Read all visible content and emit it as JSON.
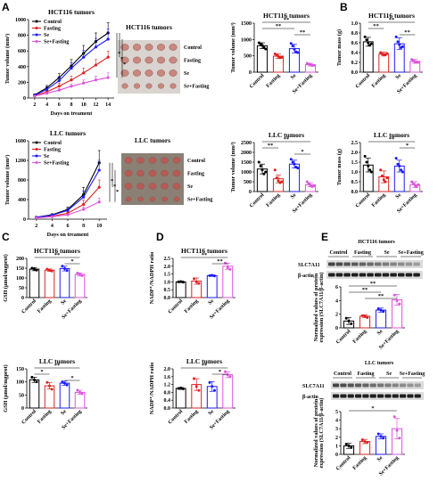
{
  "colors": {
    "Control": "#000000",
    "Fasting": "#e02020",
    "Se": "#1a1aff",
    "Se+Fasting": "#dd55dd"
  },
  "panel_letters": [
    "A",
    "B",
    "C",
    "D",
    "E"
  ],
  "photos": [
    {
      "title": "HCT116 tumors",
      "labels": [
        "Control",
        "Fasting",
        "Se",
        "Se+Fasting"
      ]
    },
    {
      "title": "LLC tumors",
      "labels": [
        "Control",
        "Fasting",
        "Se",
        "Se+Fasting"
      ]
    }
  ],
  "blots": [
    {
      "title": "HCT116 tumors",
      "header": [
        "Control",
        "Fasting",
        "Se",
        "Se+Fasting"
      ],
      "rows": [
        "SLC7A11",
        "β-actin"
      ]
    },
    {
      "title": "LLC tumors",
      "header": [
        "Control",
        "Fasting",
        "Se",
        "Se+Fasting"
      ],
      "rows": [
        "SLC7A11",
        "β-actin"
      ]
    }
  ],
  "chart_data": [
    {
      "id": "A1",
      "type": "line",
      "title": "HCT116 tumors",
      "xlabel": "Days on treament",
      "ylabel": "Tumor volume (mm³)",
      "x": [
        2,
        4,
        6,
        8,
        10,
        12,
        14
      ],
      "xticks": [
        "2",
        "4",
        "6",
        "8",
        "10",
        "12",
        "14"
      ],
      "ylim": [
        0,
        1000
      ],
      "yticks": [
        "0",
        "200",
        "400",
        "600",
        "800",
        "1000"
      ],
      "legend": [
        "Control",
        "Fasting",
        "Se",
        "Se+Fasting"
      ],
      "series": [
        {
          "name": "Control",
          "values": [
            40,
            130,
            260,
            410,
            570,
            720,
            830
          ],
          "err": [
            10,
            30,
            50,
            80,
            100,
            110,
            130
          ]
        },
        {
          "name": "Fasting",
          "values": [
            30,
            80,
            150,
            230,
            320,
            420,
            520
          ],
          "err": [
            8,
            20,
            40,
            50,
            60,
            70,
            80
          ]
        },
        {
          "name": "Se",
          "values": [
            35,
            110,
            220,
            380,
            520,
            650,
            750
          ],
          "err": [
            8,
            25,
            45,
            70,
            90,
            110,
            130
          ]
        },
        {
          "name": "Se+Fasting",
          "values": [
            25,
            60,
            100,
            150,
            190,
            230,
            260
          ],
          "err": [
            5,
            10,
            20,
            30,
            40,
            50,
            60
          ]
        }
      ],
      "annotations": [
        "*",
        "*",
        "*"
      ]
    },
    {
      "id": "A2",
      "type": "bar",
      "title": "HCT116 tumors",
      "ylabel": "Tumor volume (mm³)",
      "categories": [
        "Control",
        "Fasting",
        "Se",
        "Se+Fasting"
      ],
      "values": [
        810,
        490,
        720,
        230
      ],
      "err": [
        90,
        70,
        130,
        40
      ],
      "ylim": [
        0,
        1500
      ],
      "yticks": [
        "0",
        "500",
        "1000",
        "1500"
      ],
      "points": [
        [
          900,
          860,
          820,
          760,
          710
        ],
        [
          560,
          520,
          480,
          440,
          450
        ],
        [
          880,
          800,
          700,
          620,
          600
        ],
        [
          270,
          250,
          230,
          200,
          210
        ]
      ],
      "sig": [
        {
          "from": 0,
          "to": 3,
          "label": "**"
        },
        {
          "from": 0,
          "to": 2,
          "label": "**"
        },
        {
          "from": 2,
          "to": 3,
          "label": "**"
        }
      ]
    },
    {
      "id": "B1",
      "type": "bar",
      "title": "HCT116 tumors",
      "ylabel": "Tumor mass (g)",
      "categories": [
        "Control",
        "Fasting",
        "Se",
        "Se+Fasting"
      ],
      "values": [
        0.62,
        0.37,
        0.58,
        0.22
      ],
      "err": [
        0.09,
        0.04,
        0.12,
        0.04
      ],
      "ylim": [
        0,
        1.0
      ],
      "yticks": [
        "0.0",
        "0.2",
        "0.4",
        "0.6",
        "0.8",
        "1.0"
      ],
      "points": [
        [
          0.72,
          0.66,
          0.6,
          0.55,
          0.58
        ],
        [
          0.4,
          0.37,
          0.35,
          0.36,
          0.38
        ],
        [
          0.72,
          0.62,
          0.56,
          0.5,
          0.52
        ],
        [
          0.26,
          0.23,
          0.2,
          0.21,
          0.2
        ]
      ],
      "sig": [
        {
          "from": 0,
          "to": 3,
          "label": "**"
        },
        {
          "from": 0,
          "to": 1,
          "label": "**"
        },
        {
          "from": 2,
          "to": 3,
          "label": "**"
        }
      ]
    },
    {
      "id": "A3",
      "type": "line",
      "title": "LLC tumors",
      "xlabel": "Days on treament",
      "ylabel": "Tumor volume (mm³)",
      "x": [
        2,
        4,
        6,
        8,
        10
      ],
      "xticks": [
        "2",
        "4",
        "6",
        "8",
        "10"
      ],
      "ylim": [
        0,
        1600
      ],
      "yticks": [
        "0",
        "400",
        "800",
        "1200",
        "1600"
      ],
      "legend": [
        "Control",
        "Fasting",
        "Se",
        "Se+Fasting"
      ],
      "series": [
        {
          "name": "Control",
          "values": [
            40,
            90,
            200,
            500,
            1150
          ],
          "err": [
            10,
            20,
            50,
            150,
            250
          ]
        },
        {
          "name": "Fasting",
          "values": [
            30,
            60,
            120,
            300,
            650
          ],
          "err": [
            8,
            15,
            30,
            90,
            150
          ]
        },
        {
          "name": "Se",
          "values": [
            35,
            80,
            180,
            450,
            1000
          ],
          "err": [
            10,
            20,
            40,
            120,
            200
          ]
        },
        {
          "name": "Se+Fasting",
          "values": [
            25,
            50,
            90,
            200,
            350
          ],
          "err": [
            5,
            10,
            20,
            50,
            80
          ]
        }
      ],
      "annotations": [
        "*",
        "*",
        "*"
      ]
    },
    {
      "id": "A4",
      "type": "bar",
      "title": "LLC tumors",
      "ylabel": "Tumor volume (mm³)",
      "categories": [
        "Control",
        "Fasting",
        "Se",
        "Se+Fasting"
      ],
      "values": [
        1150,
        650,
        1400,
        350
      ],
      "err": [
        250,
        200,
        200,
        100
      ],
      "ylim": [
        0,
        2500
      ],
      "yticks": [
        "0",
        "500",
        "1000",
        "1500",
        "2000",
        "2500"
      ],
      "points": [
        [
          1500,
          1300,
          1100,
          900,
          1000
        ],
        [
          1100,
          700,
          550,
          450,
          500
        ],
        [
          1650,
          1500,
          1400,
          1250,
          1200
        ],
        [
          500,
          400,
          300,
          250,
          280
        ]
      ],
      "sig": [
        {
          "from": 0,
          "to": 3,
          "label": "**"
        },
        {
          "from": 0,
          "to": 1,
          "label": "**"
        },
        {
          "from": 2,
          "to": 3,
          "label": "*"
        }
      ]
    },
    {
      "id": "B2",
      "type": "bar",
      "title": "LLC tumors",
      "ylabel": "Tumor mass (g)",
      "categories": [
        "Control",
        "Fasting",
        "Se",
        "Se+Fasting"
      ],
      "values": [
        1.35,
        0.75,
        1.3,
        0.35
      ],
      "err": [
        0.35,
        0.3,
        0.3,
        0.15
      ],
      "ylim": [
        0,
        2.5
      ],
      "yticks": [
        "0.0",
        "0.5",
        "1.0",
        "1.5",
        "2.0",
        "2.5"
      ],
      "points": [
        [
          1.8,
          1.5,
          1.3,
          1.1,
          1.0
        ],
        [
          1.1,
          0.8,
          0.6,
          0.5,
          0.7
        ],
        [
          1.7,
          1.4,
          1.3,
          1.1,
          1.0
        ],
        [
          0.5,
          0.4,
          0.3,
          0.25,
          0.35
        ]
      ],
      "sig": [
        {
          "from": 0,
          "to": 3,
          "label": "**"
        },
        {
          "from": 2,
          "to": 3,
          "label": "*"
        }
      ]
    },
    {
      "id": "C1",
      "type": "bar",
      "title": "HCT116 tumors",
      "ylabel": "GSH (µmol/mgprot)",
      "categories": [
        "Control",
        "Fasting",
        "Se",
        "Se+Fasting"
      ],
      "values": [
        145,
        140,
        148,
        118
      ],
      "err": [
        8,
        6,
        12,
        8
      ],
      "ylim": [
        0,
        200
      ],
      "yticks": [
        "0",
        "50",
        "100",
        "150",
        "200"
      ],
      "points": [
        [
          150,
          145,
          140
        ],
        [
          145,
          140,
          135
        ],
        [
          160,
          148,
          138
        ],
        [
          125,
          118,
          112
        ]
      ],
      "sig": [
        {
          "from": 0,
          "to": 3,
          "label": "**"
        },
        {
          "from": 2,
          "to": 3,
          "label": "*"
        }
      ]
    },
    {
      "id": "D1",
      "type": "bar",
      "title": "HCT116 tumors",
      "ylabel": "NADP⁺/NADPH ratio",
      "categories": [
        "Control",
        "Fasting",
        "Se",
        "Se+Fasting"
      ],
      "values": [
        1.0,
        1.05,
        1.4,
        2.0
      ],
      "err": [
        0.05,
        0.2,
        0.05,
        0.2
      ],
      "ylim": [
        0,
        2.5
      ],
      "yticks": [
        "0.0",
        "0.5",
        "1.0",
        "1.5",
        "2.0",
        "2.5"
      ],
      "points": [
        [
          1.0,
          1.02,
          0.98
        ],
        [
          1.2,
          1.0,
          0.9
        ],
        [
          1.4,
          1.42,
          1.38
        ],
        [
          2.2,
          1.9,
          1.8
        ]
      ],
      "sig": [
        {
          "from": 0,
          "to": 3,
          "label": "**"
        },
        {
          "from": 2,
          "to": 3,
          "label": "**"
        }
      ]
    },
    {
      "id": "E1",
      "type": "bar",
      "ylabel": "Normalized values of protein expression (SLC7A11/β-actin)",
      "categories": [
        "Control",
        "Fasting",
        "Se",
        "Se+Fasting"
      ],
      "values": [
        1.0,
        1.7,
        2.6,
        4.1
      ],
      "err": [
        0.5,
        0.2,
        0.3,
        0.8
      ],
      "ylim": [
        0,
        6
      ],
      "yticks": [
        "0",
        "2",
        "4",
        "6"
      ],
      "points": [
        [
          1.4,
          1.0,
          0.6
        ],
        [
          1.8,
          1.7,
          1.5
        ],
        [
          2.8,
          2.6,
          2.4
        ],
        [
          4.8,
          4.0,
          3.5
        ]
      ],
      "sig": [
        {
          "from": 0,
          "to": 3,
          "label": "**"
        },
        {
          "from": 0,
          "to": 2,
          "label": "**"
        },
        {
          "from": 1,
          "to": 3,
          "label": "**"
        }
      ]
    },
    {
      "id": "C2",
      "type": "bar",
      "title": "LLC tumors",
      "ylabel": "GSH (µmol/mgprot)",
      "categories": [
        "Control",
        "Fasting",
        "Se",
        "Se+Fasting"
      ],
      "values": [
        108,
        85,
        95,
        60
      ],
      "err": [
        10,
        12,
        8,
        8
      ],
      "ylim": [
        0,
        150
      ],
      "yticks": [
        "0",
        "50",
        "100",
        "150"
      ],
      "points": [
        [
          118,
          108,
          100
        ],
        [
          98,
          85,
          72
        ],
        [
          100,
          95,
          88
        ],
        [
          68,
          60,
          55
        ]
      ],
      "sig": [
        {
          "from": 0,
          "to": 3,
          "label": "**"
        },
        {
          "from": 0,
          "to": 1,
          "label": "*"
        },
        {
          "from": 2,
          "to": 3,
          "label": "*"
        }
      ]
    },
    {
      "id": "D2",
      "type": "bar",
      "title": "LLC tumors",
      "ylabel": "NADP⁺/NADPH ratio",
      "categories": [
        "Control",
        "Fasting",
        "Se",
        "Se+Fasting"
      ],
      "values": [
        1.0,
        1.2,
        1.1,
        1.7
      ],
      "err": [
        0.05,
        0.3,
        0.25,
        0.15
      ],
      "ylim": [
        0,
        2.0
      ],
      "yticks": [
        "0.0",
        "0.4",
        "0.8",
        "1.2",
        "1.6",
        "2.0"
      ],
      "points": [
        [
          1.0,
          1.02,
          0.98
        ],
        [
          1.5,
          1.1,
          0.9
        ],
        [
          1.3,
          1.1,
          0.9
        ],
        [
          1.85,
          1.7,
          1.6
        ]
      ],
      "sig": [
        {
          "from": 0,
          "to": 3,
          "label": "**"
        },
        {
          "from": 2,
          "to": 3,
          "label": "*"
        }
      ]
    },
    {
      "id": "E2",
      "type": "bar",
      "ylabel": "Normalized values of protein expression (SLC7A11/β-actin)",
      "categories": [
        "Control",
        "Fasting",
        "Se",
        "Se+Fasting"
      ],
      "values": [
        1.0,
        1.5,
        2.1,
        3.0
      ],
      "err": [
        0.3,
        0.25,
        0.3,
        1.2
      ],
      "ylim": [
        0,
        5
      ],
      "yticks": [
        "0",
        "1",
        "2",
        "3",
        "4",
        "5"
      ],
      "points": [
        [
          1.2,
          1.0,
          0.8
        ],
        [
          1.7,
          1.5,
          1.4
        ],
        [
          2.4,
          2.1,
          1.9
        ],
        [
          4.4,
          2.8,
          1.9
        ]
      ],
      "sig": [
        {
          "from": 0,
          "to": 3,
          "label": "*"
        }
      ]
    }
  ]
}
